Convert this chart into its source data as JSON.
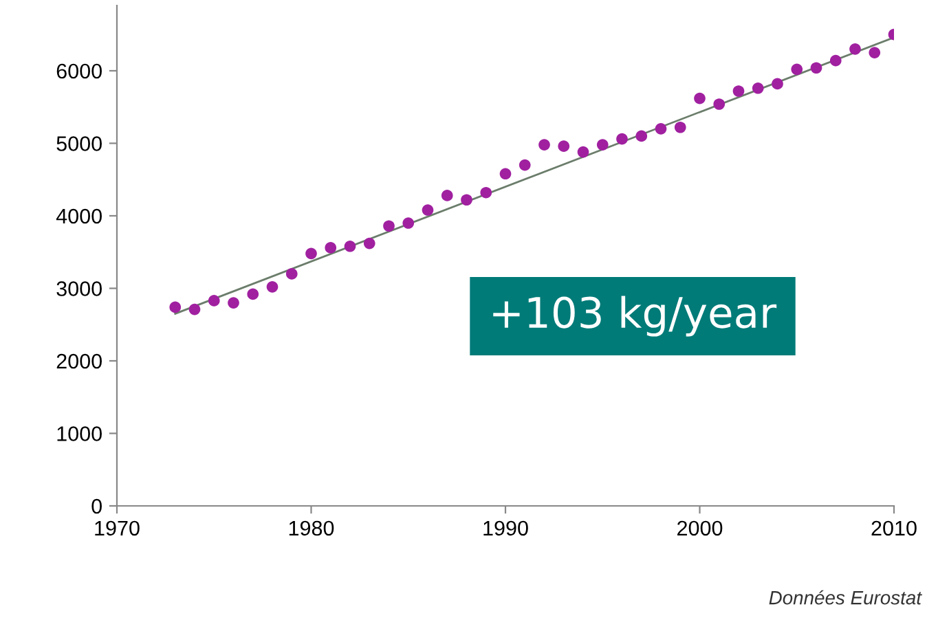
{
  "chart_data": {
    "type": "scatter",
    "x": [
      1973,
      1974,
      1975,
      1976,
      1977,
      1978,
      1979,
      1980,
      1981,
      1982,
      1983,
      1984,
      1985,
      1986,
      1987,
      1988,
      1989,
      1990,
      1991,
      1992,
      1993,
      1994,
      1995,
      1996,
      1997,
      1998,
      1999,
      2000,
      2001,
      2002,
      2003,
      2004,
      2005,
      2006,
      2007,
      2008,
      2009,
      2010
    ],
    "series": [
      {
        "color": "#a020a0",
        "marker": "circle",
        "values": [
          2740,
          2710,
          2830,
          2800,
          2920,
          3020,
          3200,
          3480,
          3560,
          3580,
          3620,
          3860,
          3900,
          4080,
          4280,
          4220,
          4320,
          4580,
          4700,
          4980,
          4960,
          4880,
          4980,
          5060,
          5100,
          5200,
          5220,
          5620,
          5540,
          5720,
          5760,
          5820,
          6020,
          6040,
          6140,
          6300,
          6250,
          6500
        ]
      },
      {
        "type": "line",
        "color": "#6b7d6b",
        "marker": "none",
        "line_style": "solid",
        "x": [
          1973,
          2010
        ],
        "values": [
          2650,
          6460
        ]
      }
    ],
    "xlim": [
      1970,
      2010
    ],
    "xticks": [
      1970,
      1980,
      1990,
      2000,
      2010
    ],
    "ylim": [
      0,
      6900
    ],
    "yticks": [
      0,
      1000,
      2000,
      3000,
      4000,
      5000,
      6000
    ],
    "grid": false,
    "legend": false,
    "annotations": [
      "+103 kg/year",
      "Données Eurostat"
    ]
  }
}
